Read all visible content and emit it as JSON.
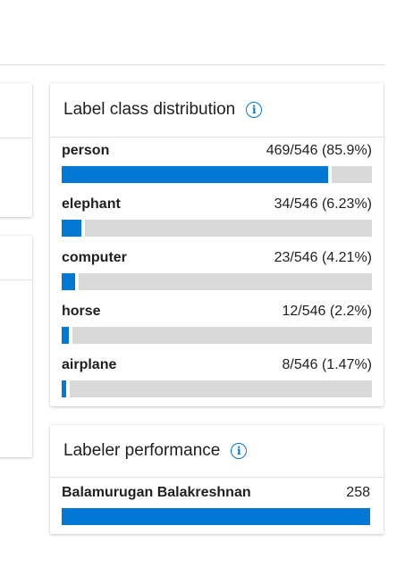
{
  "label_distribution": {
    "title": "Label class distribution",
    "info_icon": "info-icon",
    "items": [
      {
        "label": "person",
        "value_text": "469/546 (85.9%)",
        "fraction": 0.859
      },
      {
        "label": "elephant",
        "value_text": "34/546 (6.23%)",
        "fraction": 0.0623
      },
      {
        "label": "computer",
        "value_text": "23/546 (4.21%)",
        "fraction": 0.0421
      },
      {
        "label": "horse",
        "value_text": "12/546 (2.2%)",
        "fraction": 0.022
      },
      {
        "label": "airplane",
        "value_text": "8/546 (1.47%)",
        "fraction": 0.0147
      }
    ]
  },
  "labeler_performance": {
    "title": "Labeler performance",
    "info_icon": "info-icon",
    "items": [
      {
        "name": "Balamurugan Balakreshnan",
        "count": "258",
        "fraction": 1.0
      }
    ]
  },
  "colors": {
    "accent": "#0078d4",
    "track": "#d9d9d9"
  }
}
